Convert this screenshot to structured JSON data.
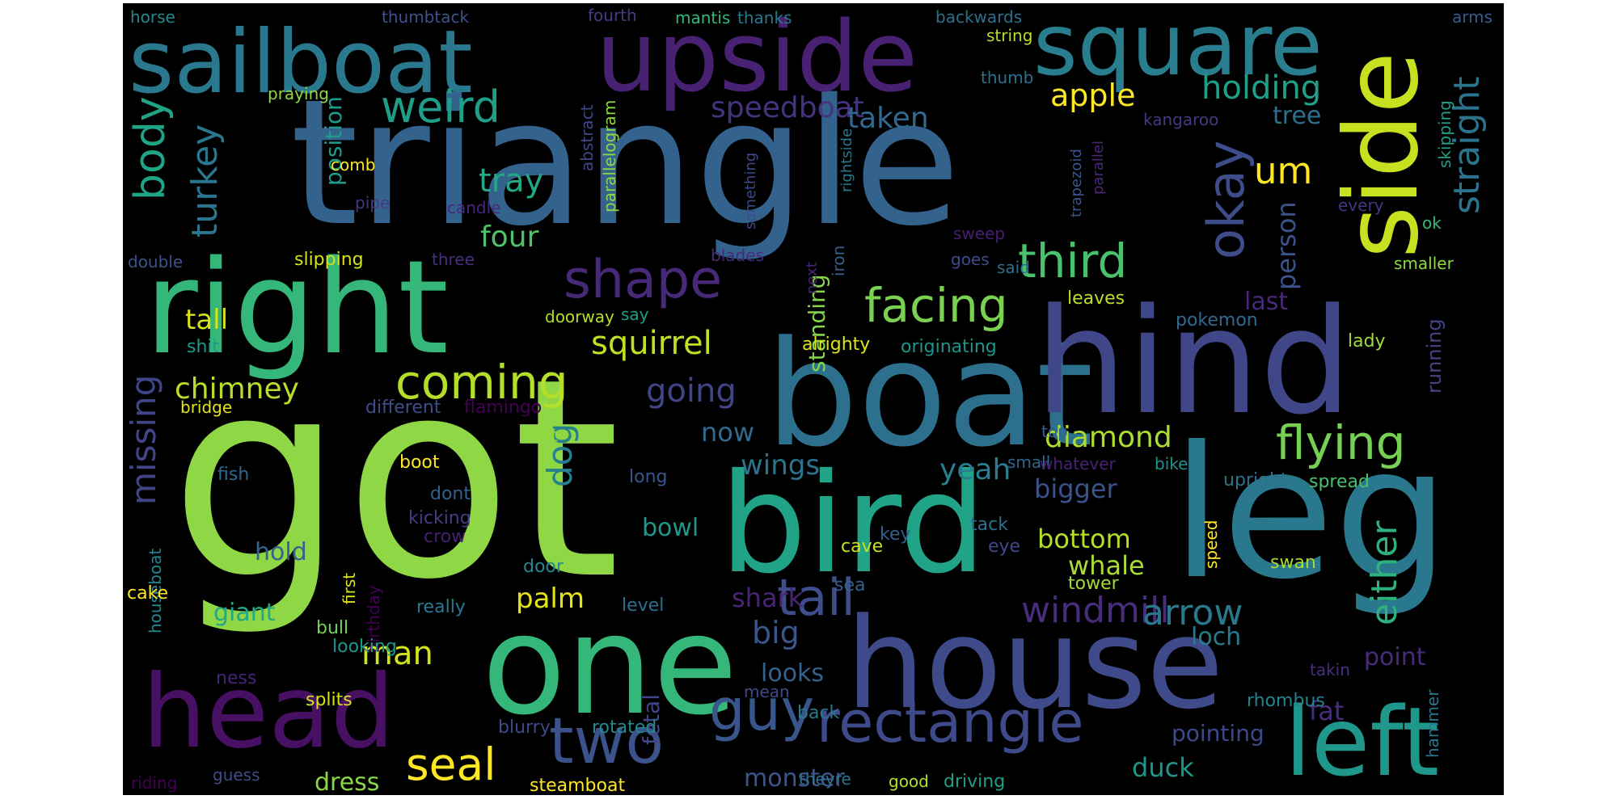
{
  "words": [
    {
      "text": "got",
      "color": "#8fd744"
    },
    {
      "text": "triangle",
      "color": "#33638d"
    },
    {
      "text": "boat",
      "color": "#2d708e"
    },
    {
      "text": "hind",
      "color": "#3f4788"
    },
    {
      "text": "leg",
      "color": "#2a788e"
    },
    {
      "text": "bird",
      "color": "#20a386"
    },
    {
      "text": "house",
      "color": "#3e4a89"
    },
    {
      "text": "one",
      "color": "#35b779"
    },
    {
      "text": "right",
      "color": "#35b779"
    },
    {
      "text": "head",
      "color": "#471063"
    },
    {
      "text": "upside",
      "color": "#482173"
    },
    {
      "text": "sailboat",
      "color": "#2a788e"
    },
    {
      "text": "square",
      "color": "#287d8e"
    },
    {
      "text": "side",
      "color": "#c7e020"
    },
    {
      "text": "left",
      "color": "#1f988b"
    },
    {
      "text": "rectangle",
      "color": "#3e4a89"
    },
    {
      "text": "two",
      "color": "#3b528b"
    },
    {
      "text": "guy",
      "color": "#39568c"
    },
    {
      "text": "tail",
      "color": "#3d4e8a"
    },
    {
      "text": "shape",
      "color": "#482878"
    },
    {
      "text": "facing",
      "color": "#7ad151"
    },
    {
      "text": "flying",
      "color": "#75d054"
    },
    {
      "text": "coming",
      "color": "#b5de2b"
    },
    {
      "text": "third",
      "color": "#4ac16d"
    },
    {
      "text": "okay",
      "color": "#3e4c8a"
    },
    {
      "text": "weird",
      "color": "#1f9e89"
    },
    {
      "text": "seal",
      "color": "#fde725"
    },
    {
      "text": "body",
      "color": "#20a486"
    },
    {
      "text": "turkey",
      "color": "#2a768e"
    },
    {
      "text": "missing",
      "color": "#404588"
    },
    {
      "text": "either",
      "color": "#2db27d"
    },
    {
      "text": "straight",
      "color": "#2c738e"
    },
    {
      "text": "windmill",
      "color": "#472d7b"
    },
    {
      "text": "arrow",
      "color": "#2a788e"
    },
    {
      "text": "squirrel",
      "color": "#c2df23"
    },
    {
      "text": "holding",
      "color": "#1fa088"
    },
    {
      "text": "apple",
      "color": "#fde725"
    },
    {
      "text": "um",
      "color": "#fde725"
    },
    {
      "text": "speedboat",
      "color": "#46337f"
    },
    {
      "text": "dog",
      "color": "#277f8e"
    },
    {
      "text": "man",
      "color": "#d2e21b"
    },
    {
      "text": "diamond",
      "color": "#aadc32"
    },
    {
      "text": "going",
      "color": "#414487"
    },
    {
      "text": "tray",
      "color": "#22a884"
    },
    {
      "text": "taken",
      "color": "#31688e"
    },
    {
      "text": "chimney",
      "color": "#b8de29"
    },
    {
      "text": "four",
      "color": "#4ec36b"
    },
    {
      "text": "tall",
      "color": "#d8e219"
    },
    {
      "text": "person",
      "color": "#3b528b"
    },
    {
      "text": "big",
      "color": "#3a548c"
    },
    {
      "text": "palm",
      "color": "#e5e419"
    },
    {
      "text": "shark",
      "color": "#482475"
    },
    {
      "text": "bigger",
      "color": "#3b528b"
    },
    {
      "text": "bottom",
      "color": "#b5de2b"
    },
    {
      "text": "whale",
      "color": "#aadc32"
    },
    {
      "text": "duck",
      "color": "#1f968b"
    },
    {
      "text": "loch",
      "color": "#287c8e"
    },
    {
      "text": "fat",
      "color": "#472d7b"
    },
    {
      "text": "point",
      "color": "#472c7a"
    },
    {
      "text": "yeah",
      "color": "#287d8e"
    },
    {
      "text": "wings",
      "color": "#2c738e"
    },
    {
      "text": "bowl",
      "color": "#1f988b"
    },
    {
      "text": "hold",
      "color": "#34618d"
    },
    {
      "text": "giant",
      "color": "#22a884"
    },
    {
      "text": "dress",
      "color": "#8bd646"
    },
    {
      "text": "monster",
      "color": "#3a548c"
    },
    {
      "text": "looks",
      "color": "#34618d"
    },
    {
      "text": "now",
      "color": "#306a8e"
    },
    {
      "text": "standing",
      "color": "#86d549"
    },
    {
      "text": "last",
      "color": "#482878"
    },
    {
      "text": "tree",
      "color": "#2d708e"
    },
    {
      "text": "fetal",
      "color": "#404688"
    },
    {
      "text": "pointing",
      "color": "#3e4989"
    },
    {
      "text": "running",
      "color": "#414487"
    },
    {
      "text": "position",
      "color": "#1e9c89"
    },
    {
      "text": "thumbtack",
      "color": "#3b528b"
    },
    {
      "text": "fourth",
      "color": "#433e85"
    },
    {
      "text": "mantis",
      "color": "#35b779"
    },
    {
      "text": "thanks",
      "color": "#2a788e"
    },
    {
      "text": "backwards",
      "color": "#2d708e"
    },
    {
      "text": "horse",
      "color": "#23898e"
    },
    {
      "text": "arms",
      "color": "#365c8d"
    },
    {
      "text": "string",
      "color": "#b8de29"
    },
    {
      "text": "thumb",
      "color": "#2d718e"
    },
    {
      "text": "praying",
      "color": "#8fd744"
    },
    {
      "text": "abstract",
      "color": "#3f4788"
    },
    {
      "text": "parallelogram",
      "color": "#8fd744"
    },
    {
      "text": "rightside",
      "color": "#29798e"
    },
    {
      "text": "trapezoid",
      "color": "#39568c"
    },
    {
      "text": "parallel",
      "color": "#482878"
    },
    {
      "text": "kangaroo",
      "color": "#453781"
    },
    {
      "text": "skipping",
      "color": "#1f9f88"
    },
    {
      "text": "comb",
      "color": "#fde725"
    },
    {
      "text": "pipe",
      "color": "#453781"
    },
    {
      "text": "candle",
      "color": "#482878"
    },
    {
      "text": "something",
      "color": "#3e4989"
    },
    {
      "text": "double",
      "color": "#3b528b"
    },
    {
      "text": "slipping",
      "color": "#d2e21b"
    },
    {
      "text": "three",
      "color": "#472f7d"
    },
    {
      "text": "blades",
      "color": "#472a7a"
    },
    {
      "text": "iron",
      "color": "#355f8d"
    },
    {
      "text": "next",
      "color": "#482677"
    },
    {
      "text": "sweep",
      "color": "#481f70"
    },
    {
      "text": "goes",
      "color": "#3e4a89"
    },
    {
      "text": "said",
      "color": "#2d718e"
    },
    {
      "text": "every",
      "color": "#453781"
    },
    {
      "text": "smaller",
      "color": "#8fd744"
    },
    {
      "text": "ok",
      "color": "#35b779"
    },
    {
      "text": "lady",
      "color": "#9fda3a"
    },
    {
      "text": "pokemon",
      "color": "#31688e"
    },
    {
      "text": "leaves",
      "color": "#bade28"
    },
    {
      "text": "shit",
      "color": "#1f9a8a"
    },
    {
      "text": "doorway",
      "color": "#b5de2b"
    },
    {
      "text": "say",
      "color": "#1f9e89"
    },
    {
      "text": "alrighty",
      "color": "#dde318"
    },
    {
      "text": "originating",
      "color": "#1f958b"
    },
    {
      "text": "bridge",
      "color": "#e5e419"
    },
    {
      "text": "different",
      "color": "#3d4e8a"
    },
    {
      "text": "flamingo",
      "color": "#440154"
    },
    {
      "text": "flat",
      "color": "#95d840"
    },
    {
      "text": "top",
      "color": "#33638d"
    },
    {
      "text": "small",
      "color": "#32648e"
    },
    {
      "text": "whatever",
      "color": "#482173"
    },
    {
      "text": "bike",
      "color": "#21918c"
    },
    {
      "text": "upright",
      "color": "#2c728e"
    },
    {
      "text": "spread",
      "color": "#4ac16d"
    },
    {
      "text": "houseboat",
      "color": "#25848e"
    },
    {
      "text": "boot",
      "color": "#fde725"
    },
    {
      "text": "fish",
      "color": "#30698e"
    },
    {
      "text": "dont",
      "color": "#34608d"
    },
    {
      "text": "first",
      "color": "#d8e219"
    },
    {
      "text": "birthday",
      "color": "#440154"
    },
    {
      "text": "kicking",
      "color": "#433e85"
    },
    {
      "text": "crow",
      "color": "#481f70"
    },
    {
      "text": "long",
      "color": "#39568c"
    },
    {
      "text": "key",
      "color": "#355e8d"
    },
    {
      "text": "tack",
      "color": "#2d718e"
    },
    {
      "text": "eye",
      "color": "#3f4889"
    },
    {
      "text": "cave",
      "color": "#c8e020"
    },
    {
      "text": "speed",
      "color": "#fde725"
    },
    {
      "text": "door",
      "color": "#24868e"
    },
    {
      "text": "tower",
      "color": "#a5db36"
    },
    {
      "text": "swan",
      "color": "#a8db34"
    },
    {
      "text": "cake",
      "color": "#fde725"
    },
    {
      "text": "bull",
      "color": "#75d054"
    },
    {
      "text": "really",
      "color": "#2a788e"
    },
    {
      "text": "level",
      "color": "#2d708e"
    },
    {
      "text": "sea",
      "color": "#34608d"
    },
    {
      "text": "takin",
      "color": "#472f7d"
    },
    {
      "text": "hammer",
      "color": "#2b758e"
    },
    {
      "text": "looking",
      "color": "#1f968b"
    },
    {
      "text": "ness",
      "color": "#482475"
    },
    {
      "text": "splits",
      "color": "#d8e219"
    },
    {
      "text": "mean",
      "color": "#3f4788"
    },
    {
      "text": "back",
      "color": "#297a8e"
    },
    {
      "text": "rhombus",
      "color": "#26828e"
    },
    {
      "text": "blurry",
      "color": "#3e4989"
    },
    {
      "text": "rotated",
      "color": "#23898e"
    },
    {
      "text": "riding",
      "color": "#440154"
    },
    {
      "text": "guess",
      "color": "#3d4d8a"
    },
    {
      "text": "steamboat",
      "color": "#fde725"
    },
    {
      "text": "theyre",
      "color": "#2d708e"
    },
    {
      "text": "good",
      "color": "#b5de2b"
    },
    {
      "text": "driving",
      "color": "#1f9e89"
    }
  ]
}
